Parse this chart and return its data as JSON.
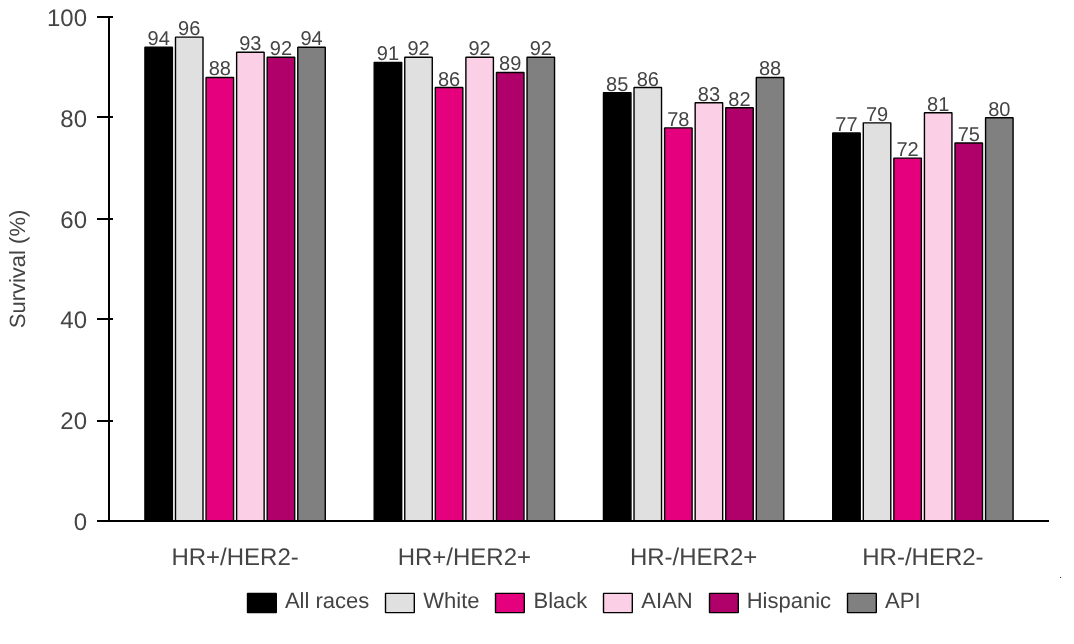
{
  "chart_data": {
    "type": "bar",
    "ylabel": "Survival (%)",
    "categories": [
      "HR+/HER2-",
      "HR+/HER2+",
      "HR-/HER2+",
      "HR-/HER2-"
    ],
    "series": [
      {
        "name": "All races",
        "color": "#000000",
        "values": [
          94,
          91,
          85,
          77
        ]
      },
      {
        "name": "White",
        "color": "#e0e0e0",
        "values": [
          96,
          92,
          86,
          79
        ]
      },
      {
        "name": "Black",
        "color": "#e5007d",
        "values": [
          88,
          86,
          78,
          72
        ]
      },
      {
        "name": "AIAN",
        "color": "#fbd0e6",
        "values": [
          93,
          92,
          83,
          81
        ]
      },
      {
        "name": "Hispanic",
        "color": "#b0006a",
        "values": [
          92,
          89,
          82,
          75
        ]
      },
      {
        "name": "API",
        "color": "#808080",
        "values": [
          94,
          92,
          88,
          80
        ]
      }
    ],
    "ylim": [
      0,
      100
    ],
    "yticks": [
      0,
      20,
      40,
      60,
      80,
      100
    ],
    "data_labels": true,
    "legend": "bottom",
    "grid": false
  }
}
